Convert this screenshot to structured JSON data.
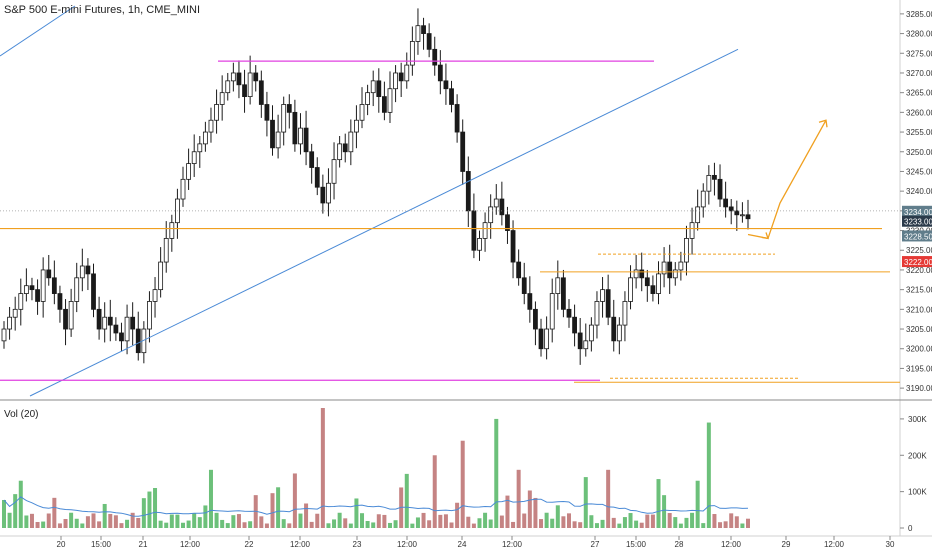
{
  "header": {
    "title": "S&P 500 E-mini Futures, 1h, CME_MINI"
  },
  "volume_panel": {
    "label": "Vol (20)",
    "ticks": [
      "300K",
      "200K",
      "100K",
      "0"
    ]
  },
  "colors": {
    "up": "#6cc07a",
    "down": "#c58383",
    "candle": "#1a1a1a",
    "trendline": "#4a8ad6",
    "resistance": "#e040e0",
    "support": "#f0a020",
    "price_tag_dark": "#2b3a4a",
    "price_tag_mid": "#607d8b",
    "price_tag_red": "#e53935"
  },
  "chart_data": {
    "type": "candlestick",
    "title": "S&P 500 E-mini Futures, 1h, CME_MINI",
    "y_axis": {
      "ticks": [
        3285,
        3280,
        3275,
        3270,
        3265,
        3260,
        3255,
        3250,
        3245,
        3240,
        3235,
        3230,
        3225,
        3220,
        3215,
        3210,
        3205,
        3200,
        3195,
        3190
      ],
      "tick_labels": [
        "3285.00",
        "3280.00",
        "3275.00",
        "3270.00",
        "3265.00",
        "3260.00",
        "3255.00",
        "3250.00",
        "3245.00",
        "3240.00",
        "3235.00",
        "3230.00",
        "3225.00",
        "3220.00",
        "3215.00",
        "3210.00",
        "3205.00",
        "3200.00",
        "3195.00",
        "3190.00"
      ],
      "range": [
        3188,
        3287
      ]
    },
    "x_axis": {
      "tick_labels": [
        "20",
        "15:00",
        "21",
        "12:00",
        "22",
        "12:00",
        "23",
        "12:00",
        "24",
        "12:00",
        "27",
        "15:00",
        "28",
        "12:00",
        "29",
        "12:00",
        "30"
      ]
    },
    "price_tags": [
      {
        "label": "3234.00",
        "value": 3234
      },
      {
        "label": "3233.00",
        "value": 3233
      },
      {
        "label": "3228.50",
        "value": 3228.5
      },
      {
        "label": "3222.00",
        "value": 3222
      }
    ],
    "annotations": {
      "resistance_lines": [
        3273,
        3192
      ],
      "support_lines": [
        3230.5,
        3219.5,
        3191.5
      ],
      "dashed_levels": [
        3224,
        3192.5
      ],
      "projection": [
        3229,
        3228,
        3237,
        3258
      ]
    },
    "volume": {
      "ticks": [
        300000,
        200000,
        100000,
        0
      ]
    },
    "series": [
      {
        "name": "",
        "values": [
          3205,
          3208,
          3210,
          3214,
          3216,
          3215,
          3212,
          3220,
          3218,
          3214,
          3210,
          3205,
          3212,
          3218,
          3221,
          3219,
          3210,
          3205,
          3208,
          3206,
          3204,
          3202,
          3208,
          3205,
          3199,
          3205,
          3212,
          3215,
          3222,
          3228,
          3232,
          3238,
          3243,
          3247,
          3250,
          3252,
          3255,
          3258,
          3262,
          3265,
          3268,
          3270,
          3267,
          3264,
          3270,
          3268,
          3262,
          3258,
          3251,
          3255,
          3262,
          3260,
          3252,
          3256,
          3250,
          3246,
          3241,
          3237,
          3242,
          3248,
          3252,
          3250,
          3255,
          3258,
          3262,
          3265,
          3268,
          3264,
          3260,
          3266,
          3270,
          3268,
          3272,
          3278,
          3282,
          3280,
          3276,
          3272,
          3268,
          3266,
          3262,
          3255,
          3245,
          3235,
          3225,
          3228,
          3232,
          3236,
          3238,
          3234,
          3230,
          3222,
          3218,
          3214,
          3210,
          3205,
          3200,
          3205,
          3214,
          3218,
          3210,
          3208,
          3204,
          3200,
          3202,
          3206,
          3212,
          3215,
          3208,
          3202,
          3206,
          3212,
          3218,
          3220,
          3218,
          3216,
          3214,
          3219,
          3222,
          3218,
          3220,
          3222,
          3228,
          3232,
          3236,
          3240,
          3244,
          3243,
          3238,
          3236,
          3235,
          3234,
          3234,
          3233
        ]
      }
    ]
  }
}
